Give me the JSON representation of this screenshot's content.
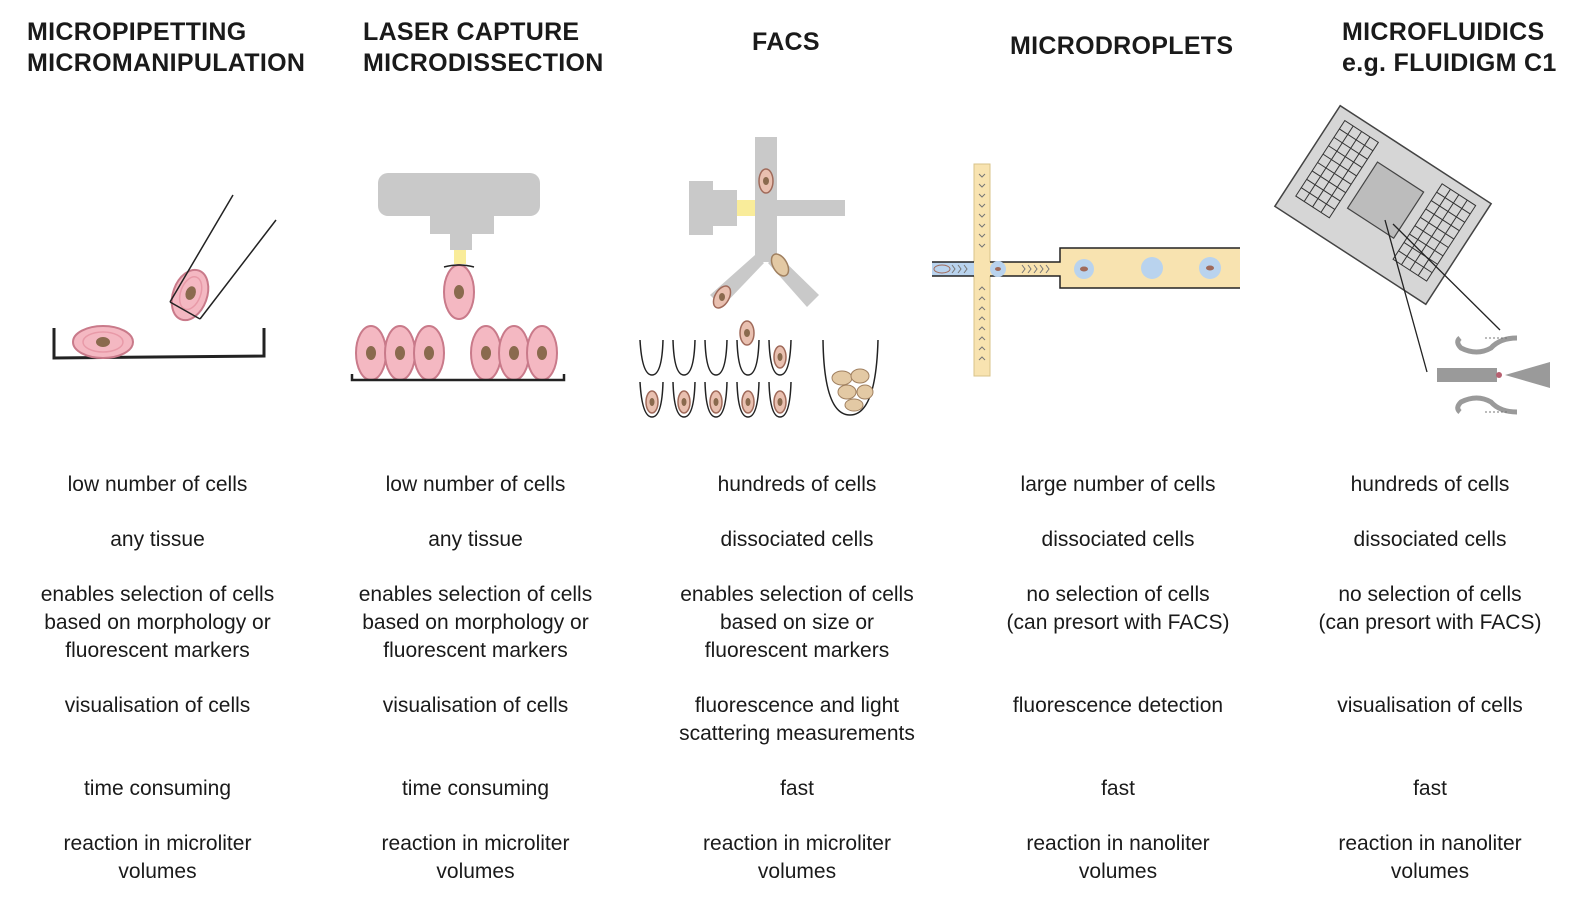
{
  "columns": [
    {
      "title": "MICROPIPETTING\nMICROMANIPULATION",
      "properties": [
        "low number of cells",
        "any tissue",
        "enables selection of cells\nbased on morphology or\nfluorescent markers",
        "visualisation of cells",
        "time consuming",
        "reaction in microliter\nvolumes"
      ]
    },
    {
      "title": "LASER CAPTURE\nMICRODISSECTION",
      "properties": [
        "low number of cells",
        "any tissue",
        "enables selection of cells\nbased on morphology or\nfluorescent markers",
        "visualisation of cells",
        "time consuming",
        "reaction in microliter\nvolumes"
      ]
    },
    {
      "title": "FACS",
      "properties": [
        "hundreds of cells",
        "dissociated cells",
        "enables selection of cells\nbased on size or\nfluorescent markers",
        "fluorescence and light\nscattering measurements",
        "fast",
        "reaction in microliter\nvolumes"
      ]
    },
    {
      "title": "MICRODROPLETS",
      "properties": [
        "large number of cells",
        "dissociated cells",
        "no selection of cells\n(can presort with FACS)",
        "fluorescence detection",
        "fast",
        "reaction in nanoliter\nvolumes"
      ]
    },
    {
      "title": "MICROFLUIDICS\ne.g. FLUIDIGM C1",
      "properties": [
        "hundreds of cells",
        "dissociated cells",
        "no selection of cells\n(can presort with FACS)",
        "visualisation of cells",
        "fast",
        "reaction in nanoliter\nvolumes"
      ]
    }
  ],
  "colors": {
    "cell_pink": "#f4b8c2",
    "cell_outline": "#c97a8a",
    "nucleus": "#8a6a4e",
    "apparatus_gray": "#c9c9c9",
    "laser_yellow": "#f9ec9a",
    "channel_tan": "#f8e3b0",
    "droplet_blue": "#b9d3ee"
  }
}
